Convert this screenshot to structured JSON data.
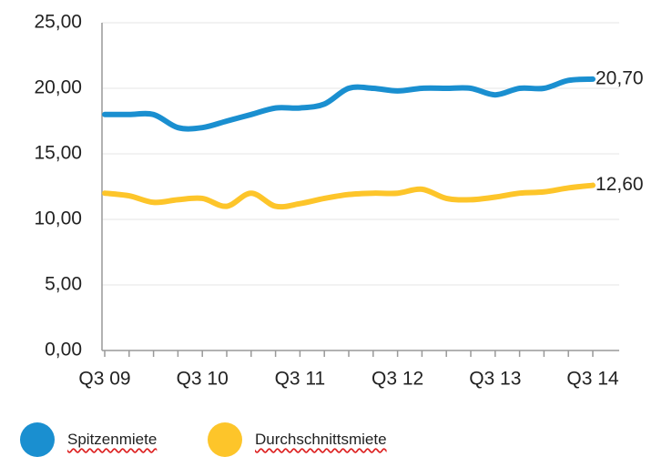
{
  "chart_data": {
    "type": "line",
    "categories": [
      "Q3 09",
      null,
      null,
      null,
      "Q3 10",
      null,
      null,
      null,
      "Q3 11",
      null,
      null,
      null,
      "Q3 12",
      null,
      null,
      null,
      "Q3 13",
      null,
      null,
      null,
      "Q3 14"
    ],
    "series": [
      {
        "name": "Spitzenmiete",
        "color": "#1a8fd0",
        "values": [
          18.0,
          18.0,
          18.0,
          17.0,
          17.0,
          17.5,
          18.0,
          18.5,
          18.5,
          18.8,
          20.0,
          20.0,
          19.8,
          20.0,
          20.0,
          20.0,
          19.5,
          20.0,
          20.0,
          20.6,
          20.7
        ],
        "value_labels": [
          null,
          null,
          null,
          null,
          null,
          null,
          null,
          null,
          null,
          null,
          null,
          null,
          null,
          null,
          null,
          null,
          null,
          null,
          null,
          null,
          "20,70"
        ]
      },
      {
        "name": "Durchschnittsmiete",
        "color": "#fdc52a",
        "values": [
          12.0,
          11.8,
          11.3,
          11.5,
          11.6,
          11.0,
          12.0,
          11.0,
          11.2,
          11.6,
          11.9,
          12.0,
          12.0,
          12.3,
          11.6,
          11.5,
          11.7,
          12.0,
          12.1,
          12.4,
          12.6
        ],
        "value_labels": [
          null,
          null,
          null,
          null,
          null,
          null,
          null,
          null,
          null,
          null,
          null,
          null,
          null,
          null,
          null,
          null,
          null,
          null,
          null,
          null,
          "12,60"
        ]
      }
    ],
    "ylim": [
      0,
      25
    ],
    "yticks": [
      {
        "value": 0,
        "label": "0,00"
      },
      {
        "value": 5,
        "label": "5,00"
      },
      {
        "value": 10,
        "label": "10,00"
      },
      {
        "value": 15,
        "label": "15,00"
      },
      {
        "value": 20,
        "label": "20,00"
      },
      {
        "value": 25,
        "label": "25,00"
      }
    ],
    "grid": true,
    "legend": "bottom"
  }
}
